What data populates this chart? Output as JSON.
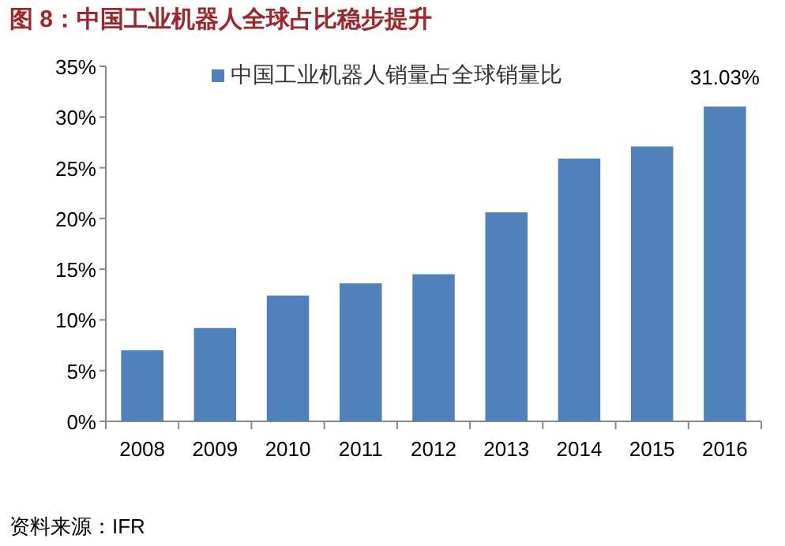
{
  "chart_data": {
    "type": "bar",
    "title": "图 8：中国工业机器人全球占比稳步提升",
    "annotations": [
      "资料来源：IFR"
    ],
    "categories": [
      "2008",
      "2009",
      "2010",
      "2011",
      "2012",
      "2013",
      "2014",
      "2015",
      "2016"
    ],
    "series": [
      {
        "name": "中国工业机器人销量占全球销量比",
        "color": "#4f81bd",
        "values": [
          7.0,
          9.2,
          12.4,
          13.6,
          14.5,
          20.6,
          25.9,
          27.1,
          31.03
        ],
        "value_labels": [
          null,
          null,
          null,
          null,
          null,
          null,
          null,
          null,
          "31.03%"
        ]
      }
    ],
    "ylim": [
      0,
      35
    ],
    "yticks": [
      {
        "value": 0,
        "label": "0%"
      },
      {
        "value": 5,
        "label": "5%"
      },
      {
        "value": 10,
        "label": "10%"
      },
      {
        "value": 15,
        "label": "15%"
      },
      {
        "value": 20,
        "label": "20%"
      },
      {
        "value": 25,
        "label": "25%"
      },
      {
        "value": 30,
        "label": "30%"
      },
      {
        "value": 35,
        "label": "35%"
      }
    ],
    "grid": false,
    "legend": "top"
  }
}
